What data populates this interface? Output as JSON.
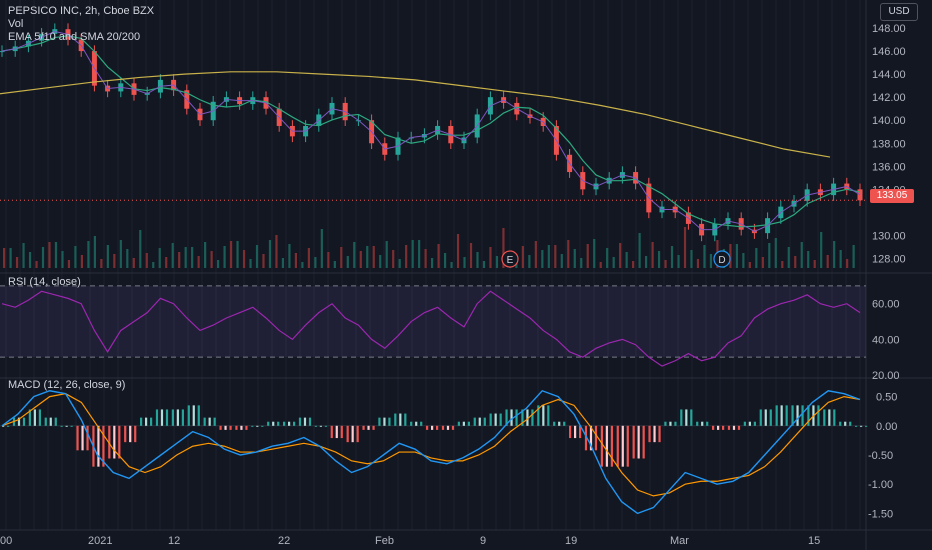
{
  "header": {
    "symbol_title": "PEPSICO INC, 2h, Cboe BZX",
    "volume_label": "Vol",
    "ma_label": "EMA 5/10 and SMA 20/200",
    "currency_button": "USD",
    "last_price": "133.05",
    "earnings_marker": "E",
    "dividend_marker": "D"
  },
  "rsi_label": "RSI (14, close)",
  "macd_label": "MACD (12, 26, close, 9)",
  "x_axis_labels": [
    "00",
    "2021",
    "12",
    "22",
    "Feb",
    "9",
    "19",
    "Mar",
    "15"
  ],
  "price_axis_labels": [
    "148.00",
    "146.00",
    "144.00",
    "142.00",
    "140.00",
    "138.00",
    "136.00",
    "134.00",
    "130.00",
    "128.00"
  ],
  "rsi_axis_labels": [
    "60.00",
    "40.00",
    "20.00"
  ],
  "macd_axis_labels": [
    "0.50",
    "0.00",
    "-0.50",
    "-1.00",
    "-1.50"
  ],
  "colors": {
    "background": "#131722",
    "up": "#26a69a",
    "down": "#ef5350",
    "sma200": "#c9b24a",
    "sma20": "#2ca87f",
    "rsi": "#9c27b0",
    "macd": "#2196f3",
    "signal": "#ff9800"
  },
  "chart_data": [
    {
      "type": "line",
      "name": "price",
      "ylim": [
        127,
        150
      ],
      "close_path": [
        146.0,
        146.4,
        146.9,
        147.5,
        147.9,
        147.0,
        146.0,
        143.0,
        142.5,
        143.2,
        142.2,
        142.4,
        143.5,
        142.6,
        141.0,
        140.0,
        141.6,
        142.0,
        141.4,
        142.0,
        141.0,
        139.5,
        138.6,
        139.5,
        140.5,
        141.5,
        140.0,
        140.0,
        138.0,
        137.0,
        138.5,
        138.5,
        138.8,
        139.5,
        138.0,
        138.5,
        140.5,
        142.0,
        141.5,
        140.5,
        140.2,
        139.5,
        137.0,
        135.5,
        134.0,
        134.5,
        135.0,
        135.5,
        134.5,
        132.0,
        132.5,
        132.0,
        131.0,
        130.0,
        131.0,
        131.5,
        130.5,
        130.2,
        131.5,
        132.5,
        133.0,
        134.0,
        133.5,
        134.5,
        134.0,
        133.05
      ],
      "sma200": [
        142.3,
        142.8,
        143.3,
        143.7,
        144.0,
        144.2,
        144.2,
        144.0,
        143.8,
        143.5,
        143.0,
        142.5,
        142.0,
        141.3,
        140.5,
        139.5,
        138.5,
        137.5,
        136.8
      ],
      "last_value": 133.05,
      "events": [
        "E",
        "D"
      ]
    },
    {
      "type": "line",
      "name": "RSI (14, close)",
      "ylim": [
        20,
        75
      ],
      "bands": [
        30,
        70
      ],
      "values": [
        60,
        58,
        62,
        67,
        65,
        63,
        60,
        45,
        33,
        45,
        50,
        55,
        63,
        60,
        52,
        45,
        48,
        52,
        55,
        58,
        52,
        45,
        40,
        48,
        55,
        60,
        52,
        48,
        40,
        35,
        42,
        50,
        55,
        58,
        52,
        47,
        60,
        67,
        62,
        57,
        52,
        45,
        40,
        33,
        30,
        35,
        38,
        40,
        37,
        30,
        25,
        28,
        32,
        28,
        30,
        38,
        42,
        52,
        57,
        60,
        62,
        65,
        60,
        58,
        60,
        55
      ]
    },
    {
      "type": "line",
      "name": "MACD (12, 26, close, 9)",
      "ylim": [
        -1.75,
        0.75
      ],
      "macd": [
        0.0,
        0.2,
        0.5,
        0.6,
        0.55,
        0.1,
        -0.5,
        -0.8,
        -0.9,
        -0.7,
        -0.5,
        -0.3,
        -0.1,
        -0.2,
        -0.4,
        -0.5,
        -0.45,
        -0.35,
        -0.3,
        -0.2,
        -0.35,
        -0.6,
        -0.8,
        -0.7,
        -0.5,
        -0.3,
        -0.4,
        -0.6,
        -0.65,
        -0.55,
        -0.4,
        -0.2,
        0.1,
        0.3,
        0.6,
        0.5,
        0.2,
        -0.3,
        -0.9,
        -1.3,
        -1.5,
        -1.4,
        -1.1,
        -0.8,
        -0.9,
        -1.0,
        -0.95,
        -0.8,
        -0.5,
        -0.2,
        0.1,
        0.4,
        0.6,
        0.55,
        0.45
      ],
      "signal": [
        0.0,
        0.1,
        0.3,
        0.5,
        0.55,
        0.4,
        0.0,
        -0.4,
        -0.7,
        -0.8,
        -0.7,
        -0.5,
        -0.35,
        -0.3,
        -0.35,
        -0.45,
        -0.45,
        -0.4,
        -0.35,
        -0.3,
        -0.35,
        -0.45,
        -0.6,
        -0.65,
        -0.6,
        -0.45,
        -0.45,
        -0.55,
        -0.6,
        -0.6,
        -0.5,
        -0.35,
        -0.1,
        0.1,
        0.35,
        0.45,
        0.35,
        0.0,
        -0.4,
        -0.8,
        -1.1,
        -1.2,
        -1.15,
        -1.0,
        -0.95,
        -0.95,
        -0.9,
        -0.85,
        -0.7,
        -0.45,
        -0.15,
        0.15,
        0.4,
        0.5,
        0.45
      ]
    }
  ]
}
